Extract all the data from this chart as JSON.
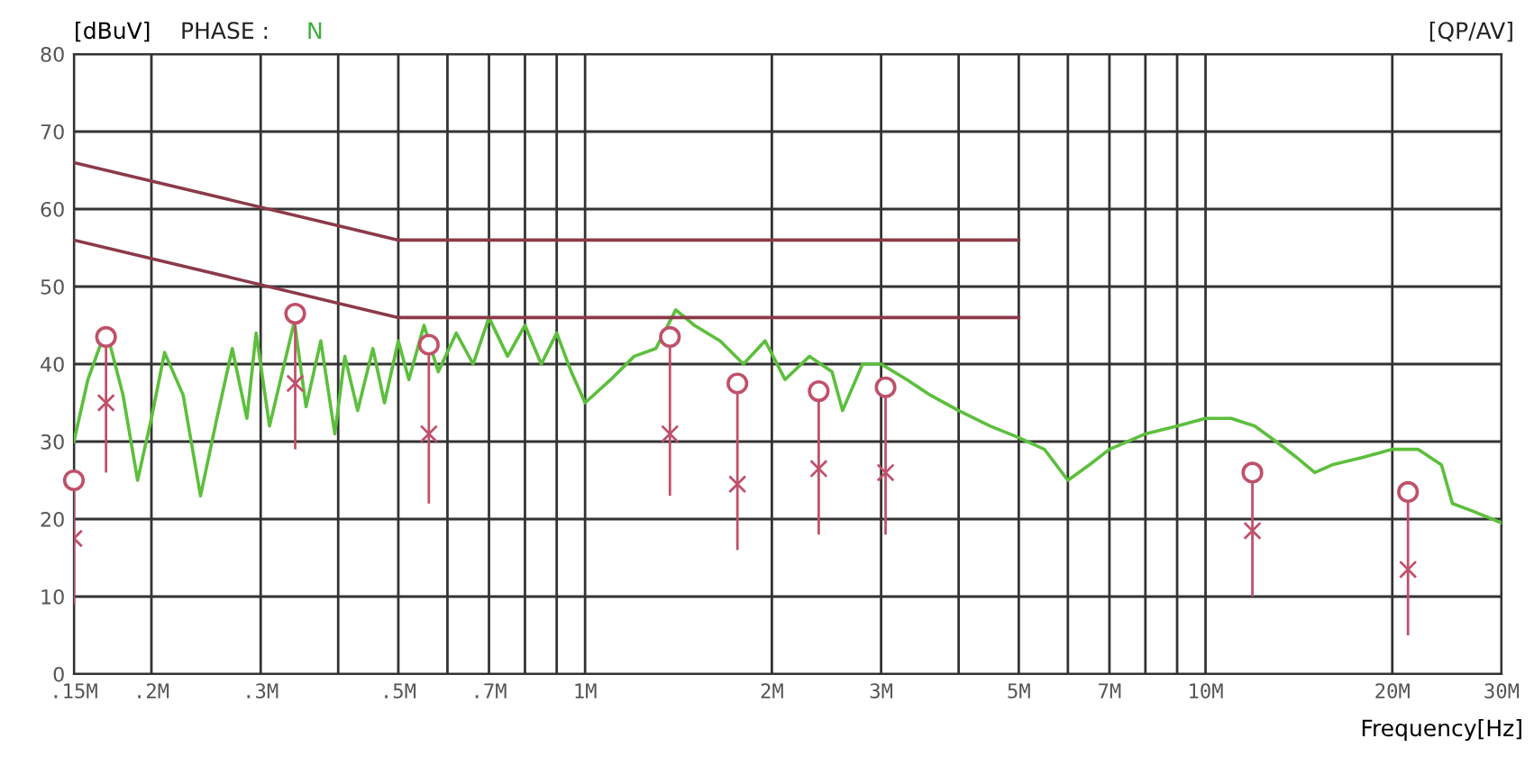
{
  "chart_data": {
    "type": "line",
    "xlabel": "Frequency[Hz]",
    "ylabel": "[dBuV]",
    "annotations": [
      "PHASE :",
      "N",
      "[QP/AV]"
    ],
    "log": "x",
    "grid": true,
    "xlim": [
      0.15,
      30
    ],
    "ylim": [
      0,
      80
    ],
    "xticks": [
      {
        "value": 0.15,
        "label": ".15M"
      },
      {
        "value": 0.2,
        "label": ".2M"
      },
      {
        "value": 0.3,
        "label": ".3M"
      },
      {
        "value": 0.4,
        "label": null
      },
      {
        "value": 0.5,
        "label": ".5M"
      },
      {
        "value": 0.6,
        "label": null
      },
      {
        "value": 0.7,
        "label": ".7M"
      },
      {
        "value": 0.8,
        "label": null
      },
      {
        "value": 0.9,
        "label": null
      },
      {
        "value": 1,
        "label": "1M"
      },
      {
        "value": 2,
        "label": "2M"
      },
      {
        "value": 3,
        "label": "3M"
      },
      {
        "value": 4,
        "label": null
      },
      {
        "value": 5,
        "label": "5M"
      },
      {
        "value": 6,
        "label": null
      },
      {
        "value": 7,
        "label": "7M"
      },
      {
        "value": 8,
        "label": null
      },
      {
        "value": 9,
        "label": null
      },
      {
        "value": 10,
        "label": "10M"
      },
      {
        "value": 20,
        "label": "20M"
      },
      {
        "value": 30,
        "label": "30M"
      }
    ],
    "yticks": [
      0,
      10,
      20,
      30,
      40,
      50,
      60,
      70,
      80
    ],
    "series": [
      {
        "color": "#5cbf3c",
        "marker": "none",
        "line_style": "solid",
        "x": [
          0.15,
          0.158,
          0.169,
          0.18,
          0.19,
          0.2,
          0.21,
          0.225,
          0.24,
          0.255,
          0.27,
          0.285,
          0.295,
          0.31,
          0.34,
          0.355,
          0.375,
          0.395,
          0.41,
          0.43,
          0.455,
          0.475,
          0.5,
          0.52,
          0.55,
          0.58,
          0.62,
          0.66,
          0.7,
          0.75,
          0.8,
          0.85,
          0.9,
          0.95,
          1.0,
          1.1,
          1.2,
          1.3,
          1.4,
          1.5,
          1.65,
          1.8,
          1.95,
          2.1,
          2.3,
          2.5,
          2.6,
          2.8,
          3.0,
          3.3,
          3.6,
          4.0,
          4.5,
          5.0,
          5.5,
          6.0,
          6.5,
          7.0,
          8.0,
          9.0,
          10,
          11,
          12,
          13,
          14,
          15,
          16,
          18,
          20,
          22,
          24,
          25,
          27,
          30
        ],
        "values": [
          30,
          38,
          44.5,
          36,
          25,
          33,
          41.5,
          36,
          23,
          33,
          42,
          33,
          44,
          32,
          45.5,
          34.5,
          43,
          31,
          41,
          34,
          42,
          35,
          43,
          38,
          45,
          39,
          44,
          40,
          46,
          41,
          45,
          40,
          44,
          39,
          35,
          38,
          41,
          42,
          47,
          45,
          43,
          40,
          43,
          38,
          41,
          39,
          34,
          40,
          40,
          38,
          36,
          34,
          32,
          30.5,
          29,
          25,
          27,
          29,
          31,
          32,
          33,
          33,
          32,
          30,
          28,
          26,
          27,
          28,
          29,
          29,
          27,
          22,
          21,
          19.5
        ]
      },
      {
        "color": "#8b3a4a",
        "marker": "none",
        "line_style": "solid",
        "x": [
          0.15,
          0.5,
          5
        ],
        "values": [
          66,
          56,
          56
        ]
      },
      {
        "color": "#8b3a4a",
        "marker": "none",
        "line_style": "solid",
        "x": [
          0.15,
          0.5,
          5
        ],
        "values": [
          56,
          46,
          46
        ]
      },
      {
        "type": "scatter",
        "color": "#c0506a",
        "marker": "circle",
        "x": [
          0.15,
          0.169,
          0.341,
          0.56,
          1.37,
          1.76,
          2.38,
          3.05,
          11.9,
          21.2
        ],
        "values": [
          25,
          43.5,
          46.5,
          42.5,
          43.5,
          37.5,
          36.5,
          37,
          26,
          23.5
        ],
        "errors": [
          [
            9,
            25
          ],
          [
            26,
            43.5
          ],
          [
            29,
            46.5
          ],
          [
            22,
            42.5
          ],
          [
            23,
            43.5
          ],
          [
            16,
            37.5
          ],
          [
            18,
            36.5
          ],
          [
            18,
            37
          ],
          [
            10,
            26
          ],
          [
            5,
            23.5
          ]
        ]
      },
      {
        "type": "scatter",
        "color": "#c0506a",
        "marker": "cross",
        "x": [
          0.15,
          0.169,
          0.341,
          0.56,
          1.37,
          1.76,
          2.38,
          3.05,
          11.9,
          21.2
        ],
        "values": [
          17.5,
          35,
          37.5,
          31,
          31,
          24.5,
          26.5,
          26,
          18.5,
          13.5
        ]
      }
    ]
  }
}
